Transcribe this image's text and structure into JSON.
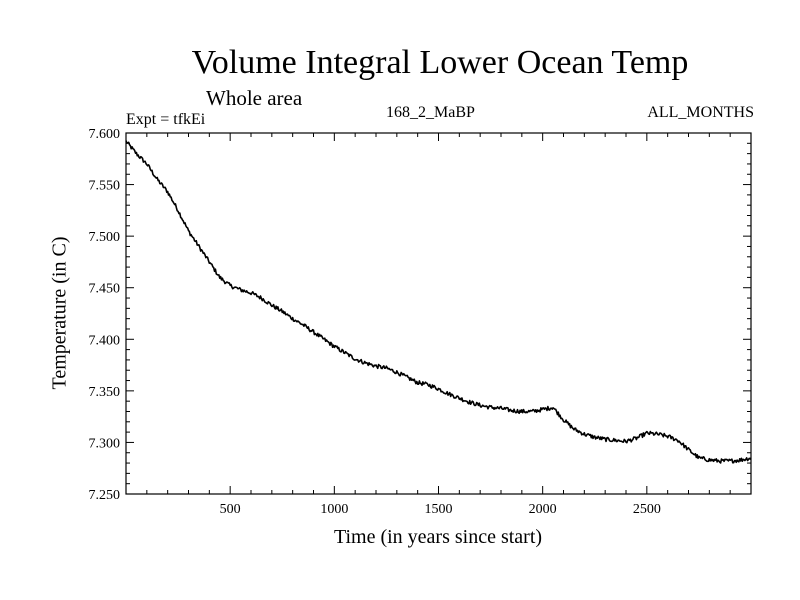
{
  "header": {
    "title": "Volume Integral Lower Ocean Temp",
    "subtitle": "Whole area",
    "expt": "Expt = tfkEi",
    "code": "168_2_MaBP",
    "months": "ALL_MONTHS"
  },
  "chart_data": {
    "type": "line",
    "title": "Volume Integral Lower Ocean Temp",
    "subtitle": "Whole area",
    "xlabel": "Time (in years since start)",
    "ylabel": "Temperature (in C)",
    "xlim": [
      0,
      3000
    ],
    "ylim": [
      7.25,
      7.6
    ],
    "x_ticks": [
      500,
      1000,
      1500,
      2000,
      2500
    ],
    "x_tick_labels": [
      "500",
      "1000",
      "1500",
      "2000",
      "2500"
    ],
    "y_ticks": [
      7.25,
      7.3,
      7.35,
      7.4,
      7.45,
      7.5,
      7.55,
      7.6
    ],
    "y_tick_labels": [
      "7.250",
      "7.300",
      "7.350",
      "7.400",
      "7.450",
      "7.500",
      "7.550",
      "7.600"
    ],
    "grid": false,
    "series": [
      {
        "color": "#000000",
        "x": [
          0,
          50,
          100,
          150,
          200,
          250,
          300,
          350,
          400,
          450,
          500,
          550,
          600,
          650,
          700,
          750,
          800,
          850,
          900,
          950,
          1000,
          1050,
          1100,
          1150,
          1200,
          1250,
          1300,
          1350,
          1400,
          1450,
          1500,
          1550,
          1600,
          1650,
          1700,
          1750,
          1800,
          1850,
          1900,
          1950,
          2000,
          2050,
          2100,
          2150,
          2200,
          2250,
          2300,
          2350,
          2400,
          2450,
          2500,
          2550,
          2600,
          2650,
          2700,
          2750,
          2800,
          2850,
          2900,
          2950,
          3000
        ],
        "values": [
          7.592,
          7.58,
          7.57,
          7.555,
          7.543,
          7.525,
          7.505,
          7.49,
          7.475,
          7.46,
          7.452,
          7.448,
          7.445,
          7.44,
          7.433,
          7.427,
          7.42,
          7.414,
          7.407,
          7.4,
          7.393,
          7.387,
          7.381,
          7.377,
          7.374,
          7.372,
          7.368,
          7.363,
          7.358,
          7.356,
          7.352,
          7.347,
          7.343,
          7.339,
          7.336,
          7.334,
          7.333,
          7.331,
          7.33,
          7.33,
          7.332,
          7.334,
          7.322,
          7.313,
          7.308,
          7.305,
          7.303,
          7.302,
          7.301,
          7.304,
          7.309,
          7.308,
          7.306,
          7.302,
          7.293,
          7.285,
          7.283,
          7.282,
          7.282,
          7.283,
          7.285
        ]
      }
    ]
  }
}
